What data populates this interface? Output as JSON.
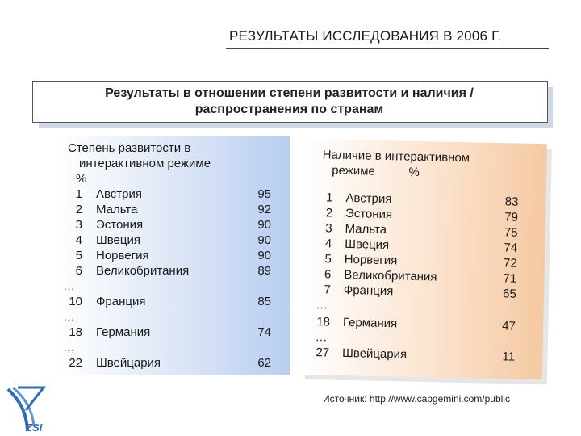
{
  "title": "РЕЗУЛЬТАТЫ ИССЛЕДОВАНИЯ В 2006 Г.",
  "subtitle": [
    "Результаты в отношении степени развитости и наличия /",
    "распространения по странам"
  ],
  "left": {
    "header": [
      "Степень развитости в",
      "интерактивном режиме",
      "%"
    ],
    "rows": [
      {
        "rank": "1",
        "country": "Австрия",
        "value": "95"
      },
      {
        "rank": "2",
        "country": "Мальта",
        "value": "92"
      },
      {
        "rank": "3",
        "country": "Эстония",
        "value": "90"
      },
      {
        "rank": "4",
        "country": "Швеция",
        "value": "90"
      },
      {
        "rank": "5",
        "country": "Норвегия",
        "value": "90"
      },
      {
        "rank": "6",
        "country": "Великобритания",
        "value": "89"
      },
      {
        "rank": "10",
        "country": "Франция",
        "value": "85"
      },
      {
        "rank": "18",
        "country": "Германия",
        "value": "74"
      },
      {
        "rank": "22",
        "country": "Швейцария",
        "value": "62"
      }
    ],
    "ellipsis": "…"
  },
  "right": {
    "header": [
      "Наличие в интерактивном",
      "режиме          %"
    ],
    "rows": [
      {
        "rank": "1",
        "country": "Австрия",
        "value": "83"
      },
      {
        "rank": "2",
        "country": "Эстония",
        "value": "79"
      },
      {
        "rank": "3",
        "country": "Мальта",
        "value": "75"
      },
      {
        "rank": "4",
        "country": "Швеция",
        "value": "74"
      },
      {
        "rank": "5",
        "country": "Норвегия",
        "value": "72"
      },
      {
        "rank": "6",
        "country": "Великобритания",
        "value": "71"
      },
      {
        "rank": "7",
        "country": "Франция",
        "value": "65"
      },
      {
        "rank": "18",
        "country": "Германия",
        "value": "47"
      },
      {
        "rank": "27",
        "country": "Швейцария",
        "value": "11"
      }
    ],
    "ellipsis": "…"
  },
  "source": "Источник: http://www.capgemini.com/public",
  "logo_text": "ZSI",
  "colors": {
    "left_panel": "#b8cdf0",
    "right_panel": "#f6c9a2",
    "logo": "#2f6db5"
  }
}
